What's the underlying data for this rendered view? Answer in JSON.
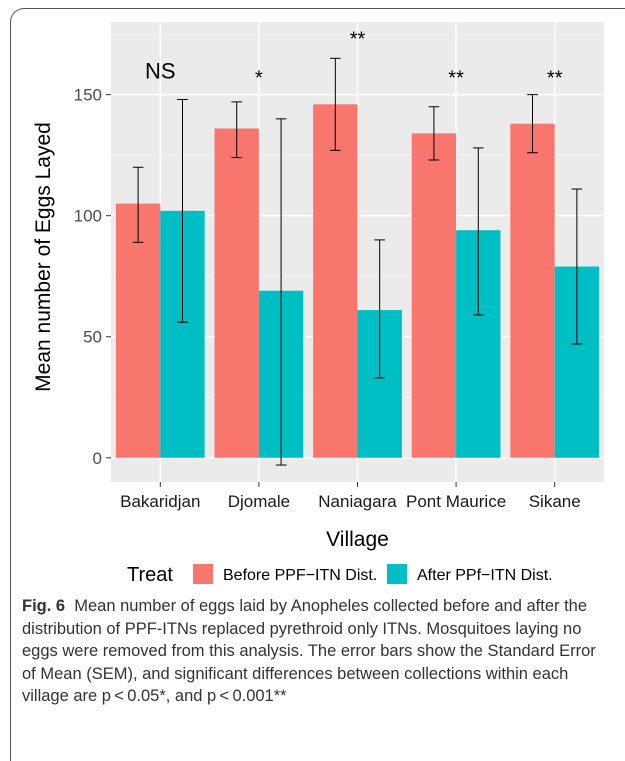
{
  "chart_data": {
    "type": "bar",
    "xlabel": "Village",
    "ylabel": "Mean number of Eggs Layed",
    "categories": [
      "Bakaridjan",
      "Djomale",
      "Naniagara",
      "Pont Maurice",
      "Sikane"
    ],
    "ylim": [
      -10,
      180
    ],
    "yticks": [
      0,
      50,
      100,
      150
    ],
    "grid": true,
    "legend": {
      "title": "Treat",
      "position": "bottom"
    },
    "series": [
      {
        "name": "Before PPF−ITN Dist.",
        "color": "#F8766D",
        "values": [
          105,
          136,
          146,
          134,
          138
        ],
        "err_low": [
          89,
          124,
          127,
          123,
          126
        ],
        "err_high": [
          120,
          147,
          165,
          145,
          150
        ]
      },
      {
        "name": "After PPf−ITN Dist.",
        "color": "#00BFC4",
        "values": [
          102,
          69,
          61,
          94,
          79
        ],
        "err_low": [
          56,
          -3,
          33,
          59,
          47
        ],
        "err_high": [
          148,
          140,
          90,
          128,
          111
        ]
      }
    ],
    "annotations": [
      {
        "category": "Bakaridjan",
        "text": "NS",
        "y": 160
      },
      {
        "category": "Djomale",
        "text": "*",
        "y": 160
      },
      {
        "category": "Naniagara",
        "text": "**",
        "y": 176
      },
      {
        "category": "Pont Maurice",
        "text": "**",
        "y": 160
      },
      {
        "category": "Sikane",
        "text": "**",
        "y": 160
      }
    ]
  },
  "caption": {
    "label": "Fig. 6",
    "text": "Mean number of eggs laid by Anopheles collected before and after the distribution of PPF-ITNs replaced pyrethroid only ITNs. Mosquitoes laying no eggs were removed from this analysis. The error bars show the Standard Error of Mean (SEM), and significant differences between collections within each village are p < 0.05*, and p < 0.001**"
  }
}
